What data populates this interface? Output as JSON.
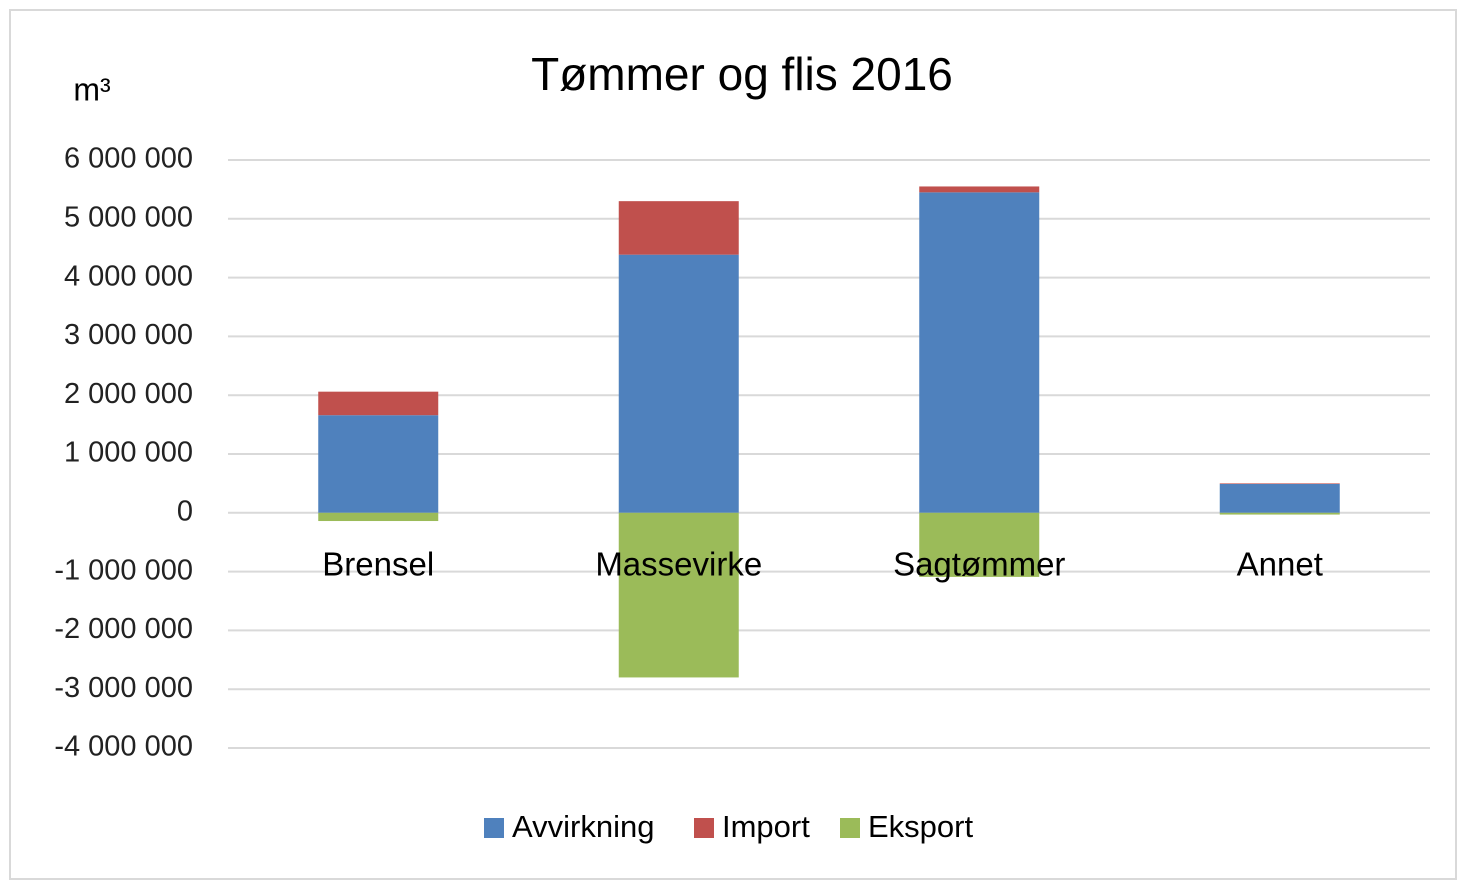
{
  "chart_data": {
    "type": "stacked_bar",
    "title": "Tømmer og flis 2016",
    "y_label": "m³",
    "categories": [
      "Brensel",
      "Massevirke",
      "Sagtømmer",
      "Annet"
    ],
    "series": [
      {
        "name": "Avvirkning",
        "color": "#4f81bd",
        "values": [
          1660000,
          4390000,
          5450000,
          490000
        ]
      },
      {
        "name": "Import",
        "color": "#c0504d",
        "values": [
          400000,
          910000,
          100000,
          10000
        ]
      },
      {
        "name": "Eksport",
        "color": "#9bbb59",
        "values": [
          -140000,
          -2800000,
          -1090000,
          -30000
        ]
      }
    ],
    "ylim": [
      -4000000,
      6000000
    ],
    "yticks": [
      {
        "value": -4000000,
        "label": "-4 000 000"
      },
      {
        "value": -3000000,
        "label": "-3 000 000"
      },
      {
        "value": -2000000,
        "label": "-2 000 000"
      },
      {
        "value": -1000000,
        "label": "-1 000 000"
      },
      0,
      {
        "value": 1000000,
        "label": "1 000 000"
      },
      {
        "value": 2000000,
        "label": "2 000 000"
      },
      {
        "value": 3000000,
        "label": "3 000 000"
      },
      {
        "value": 4000000,
        "label": "4 000 000"
      },
      {
        "value": 5000000,
        "label": "5 000 000"
      },
      {
        "value": 6000000,
        "label": "6 000 000"
      }
    ],
    "grid": true,
    "legend": "bottom"
  }
}
